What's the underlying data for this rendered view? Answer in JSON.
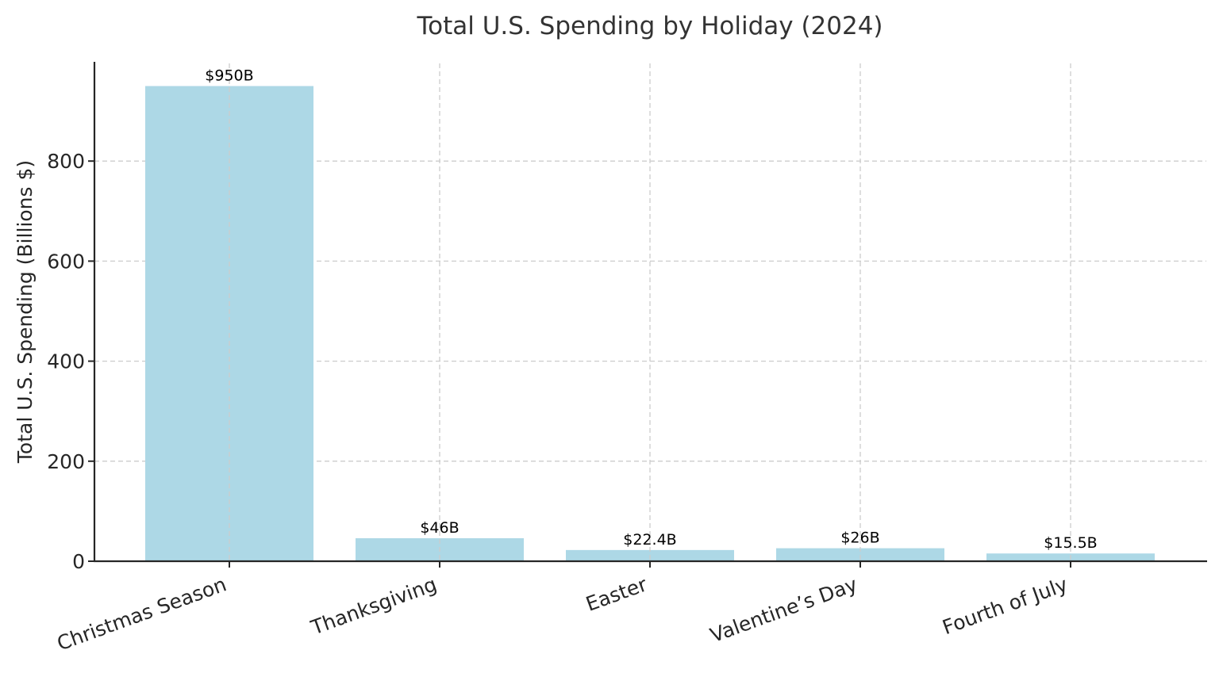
{
  "chart_data": {
    "type": "bar",
    "title": "Total U.S. Spending by Holiday (2024)",
    "xlabel": "",
    "ylabel": "Total U.S. Spending (Billions $)",
    "categories": [
      "Christmas Season",
      "Thanksgiving",
      "Easter",
      "Valentine’s Day",
      "Fourth of July"
    ],
    "values": [
      950,
      46,
      22.4,
      26,
      15.5
    ],
    "value_labels": [
      "$950B",
      "$46B",
      "$22.4B",
      "$26B",
      "$15.5B"
    ],
    "ylim": [
      0,
      1000
    ],
    "yticks": [
      0,
      200,
      400,
      600,
      800
    ],
    "grid": true,
    "legend": null,
    "bar_color": "#add8e6",
    "xtick_rotation": 20
  }
}
